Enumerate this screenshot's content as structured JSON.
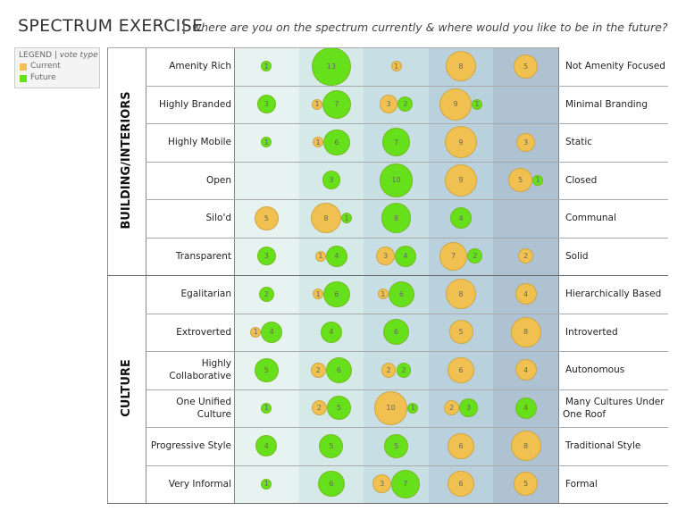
{
  "chart_data": {
    "type": "bubble-matrix",
    "title": "SPECTRUM EXERCISE",
    "subtitle": "where are you on the spectrum currently & where would you like to be in the future?",
    "legend": {
      "title": "LEGEND",
      "subtitle": "vote type"
    },
    "series": [
      {
        "name": "Current",
        "color": "#f0c050",
        "key": "current"
      },
      {
        "name": "Future",
        "color": "#66e01a",
        "key": "future"
      }
    ],
    "column_colors": [
      "#e7f3f0",
      "#d6e9e9",
      "#c6dee4",
      "#b9d0dd",
      "#aec2d2"
    ],
    "groups": [
      {
        "name": "BUILDING/INTERIORS",
        "rows": [
          {
            "left": [
              "Amenity Rich"
            ],
            "right": [
              "Not Amenity Focused"
            ],
            "current": [
              null,
              null,
              1,
              8,
              5
            ],
            "future": [
              1,
              13,
              null,
              null,
              null
            ]
          },
          {
            "left": [
              "Highly Branded"
            ],
            "right": [
              "Minimal Branding"
            ],
            "current": [
              null,
              1,
              3,
              9,
              null
            ],
            "future": [
              3,
              7,
              2,
              1,
              null
            ]
          },
          {
            "left": [
              "Highly Mobile"
            ],
            "right": [
              "Static"
            ],
            "current": [
              null,
              1,
              null,
              9,
              3
            ],
            "future": [
              1,
              6,
              7,
              null,
              null
            ]
          },
          {
            "left": [
              "Open"
            ],
            "right": [
              "Closed"
            ],
            "current": [
              null,
              null,
              null,
              9,
              5
            ],
            "future": [
              null,
              3,
              10,
              null,
              1
            ]
          },
          {
            "left": [
              "Silo'd"
            ],
            "right": [
              "Communal"
            ],
            "current": [
              5,
              8,
              null,
              null,
              null
            ],
            "future": [
              null,
              1,
              8,
              4,
              null
            ]
          },
          {
            "left": [
              "Transparent"
            ],
            "right": [
              "Solid"
            ],
            "current": [
              null,
              1,
              3,
              7,
              2
            ],
            "future": [
              3,
              4,
              4,
              2,
              null
            ]
          }
        ]
      },
      {
        "name": "CULTURE",
        "rows": [
          {
            "left": [
              "Egalitarian"
            ],
            "right": [
              "Hierarchically Based"
            ],
            "current": [
              null,
              1,
              1,
              8,
              4
            ],
            "future": [
              2,
              6,
              6,
              null,
              null
            ]
          },
          {
            "left": [
              "Extroverted"
            ],
            "right": [
              "Introverted"
            ],
            "current": [
              1,
              null,
              null,
              5,
              8
            ],
            "future": [
              4,
              4,
              6,
              null,
              null
            ]
          },
          {
            "left": [
              "Highly",
              "Collaborative"
            ],
            "right": [
              "Autonomous"
            ],
            "current": [
              null,
              2,
              2,
              6,
              4
            ],
            "future": [
              5,
              6,
              2,
              null,
              null
            ]
          },
          {
            "left": [
              "One Unified",
              "Culture"
            ],
            "right": [
              "Many Cultures Under",
              "One Roof"
            ],
            "current": [
              null,
              2,
              10,
              2,
              null
            ],
            "future": [
              1,
              5,
              1,
              3,
              4
            ]
          },
          {
            "left": [
              "Progressive Style"
            ],
            "right": [
              "Traditional Style"
            ],
            "current": [
              null,
              null,
              null,
              6,
              8
            ],
            "future": [
              4,
              5,
              5,
              null,
              null
            ]
          },
          {
            "left": [
              "Very Informal"
            ],
            "right": [
              "Formal"
            ],
            "current": [
              null,
              null,
              3,
              6,
              5
            ],
            "future": [
              1,
              6,
              7,
              null,
              null
            ]
          }
        ]
      }
    ]
  }
}
